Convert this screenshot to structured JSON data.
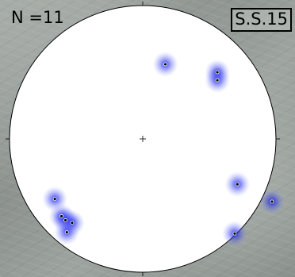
{
  "labels": {
    "count": "N =11",
    "site": "S.S.15"
  },
  "colors": {
    "circle_fill": "#ffffff",
    "circle_stroke": "#000000",
    "density": "#0000dd",
    "points": "#000000"
  },
  "chart_data": {
    "type": "scatter",
    "title": "",
    "projection": "stereonet",
    "points": [
      {
        "x": 0.17,
        "y": 0.56
      },
      {
        "x": -0.66,
        "y": -0.45
      },
      {
        "x": -0.61,
        "y": -0.58
      },
      {
        "x": -0.58,
        "y": -0.61
      },
      {
        "x": -0.53,
        "y": -0.63
      },
      {
        "x": -0.57,
        "y": -0.7
      },
      {
        "x": 0.56,
        "y": 0.44
      },
      {
        "x": 0.56,
        "y": 0.5
      },
      {
        "x": 0.71,
        "y": -0.34
      },
      {
        "x": 0.97,
        "y": -0.47
      },
      {
        "x": 0.69,
        "y": -0.71
      }
    ]
  }
}
